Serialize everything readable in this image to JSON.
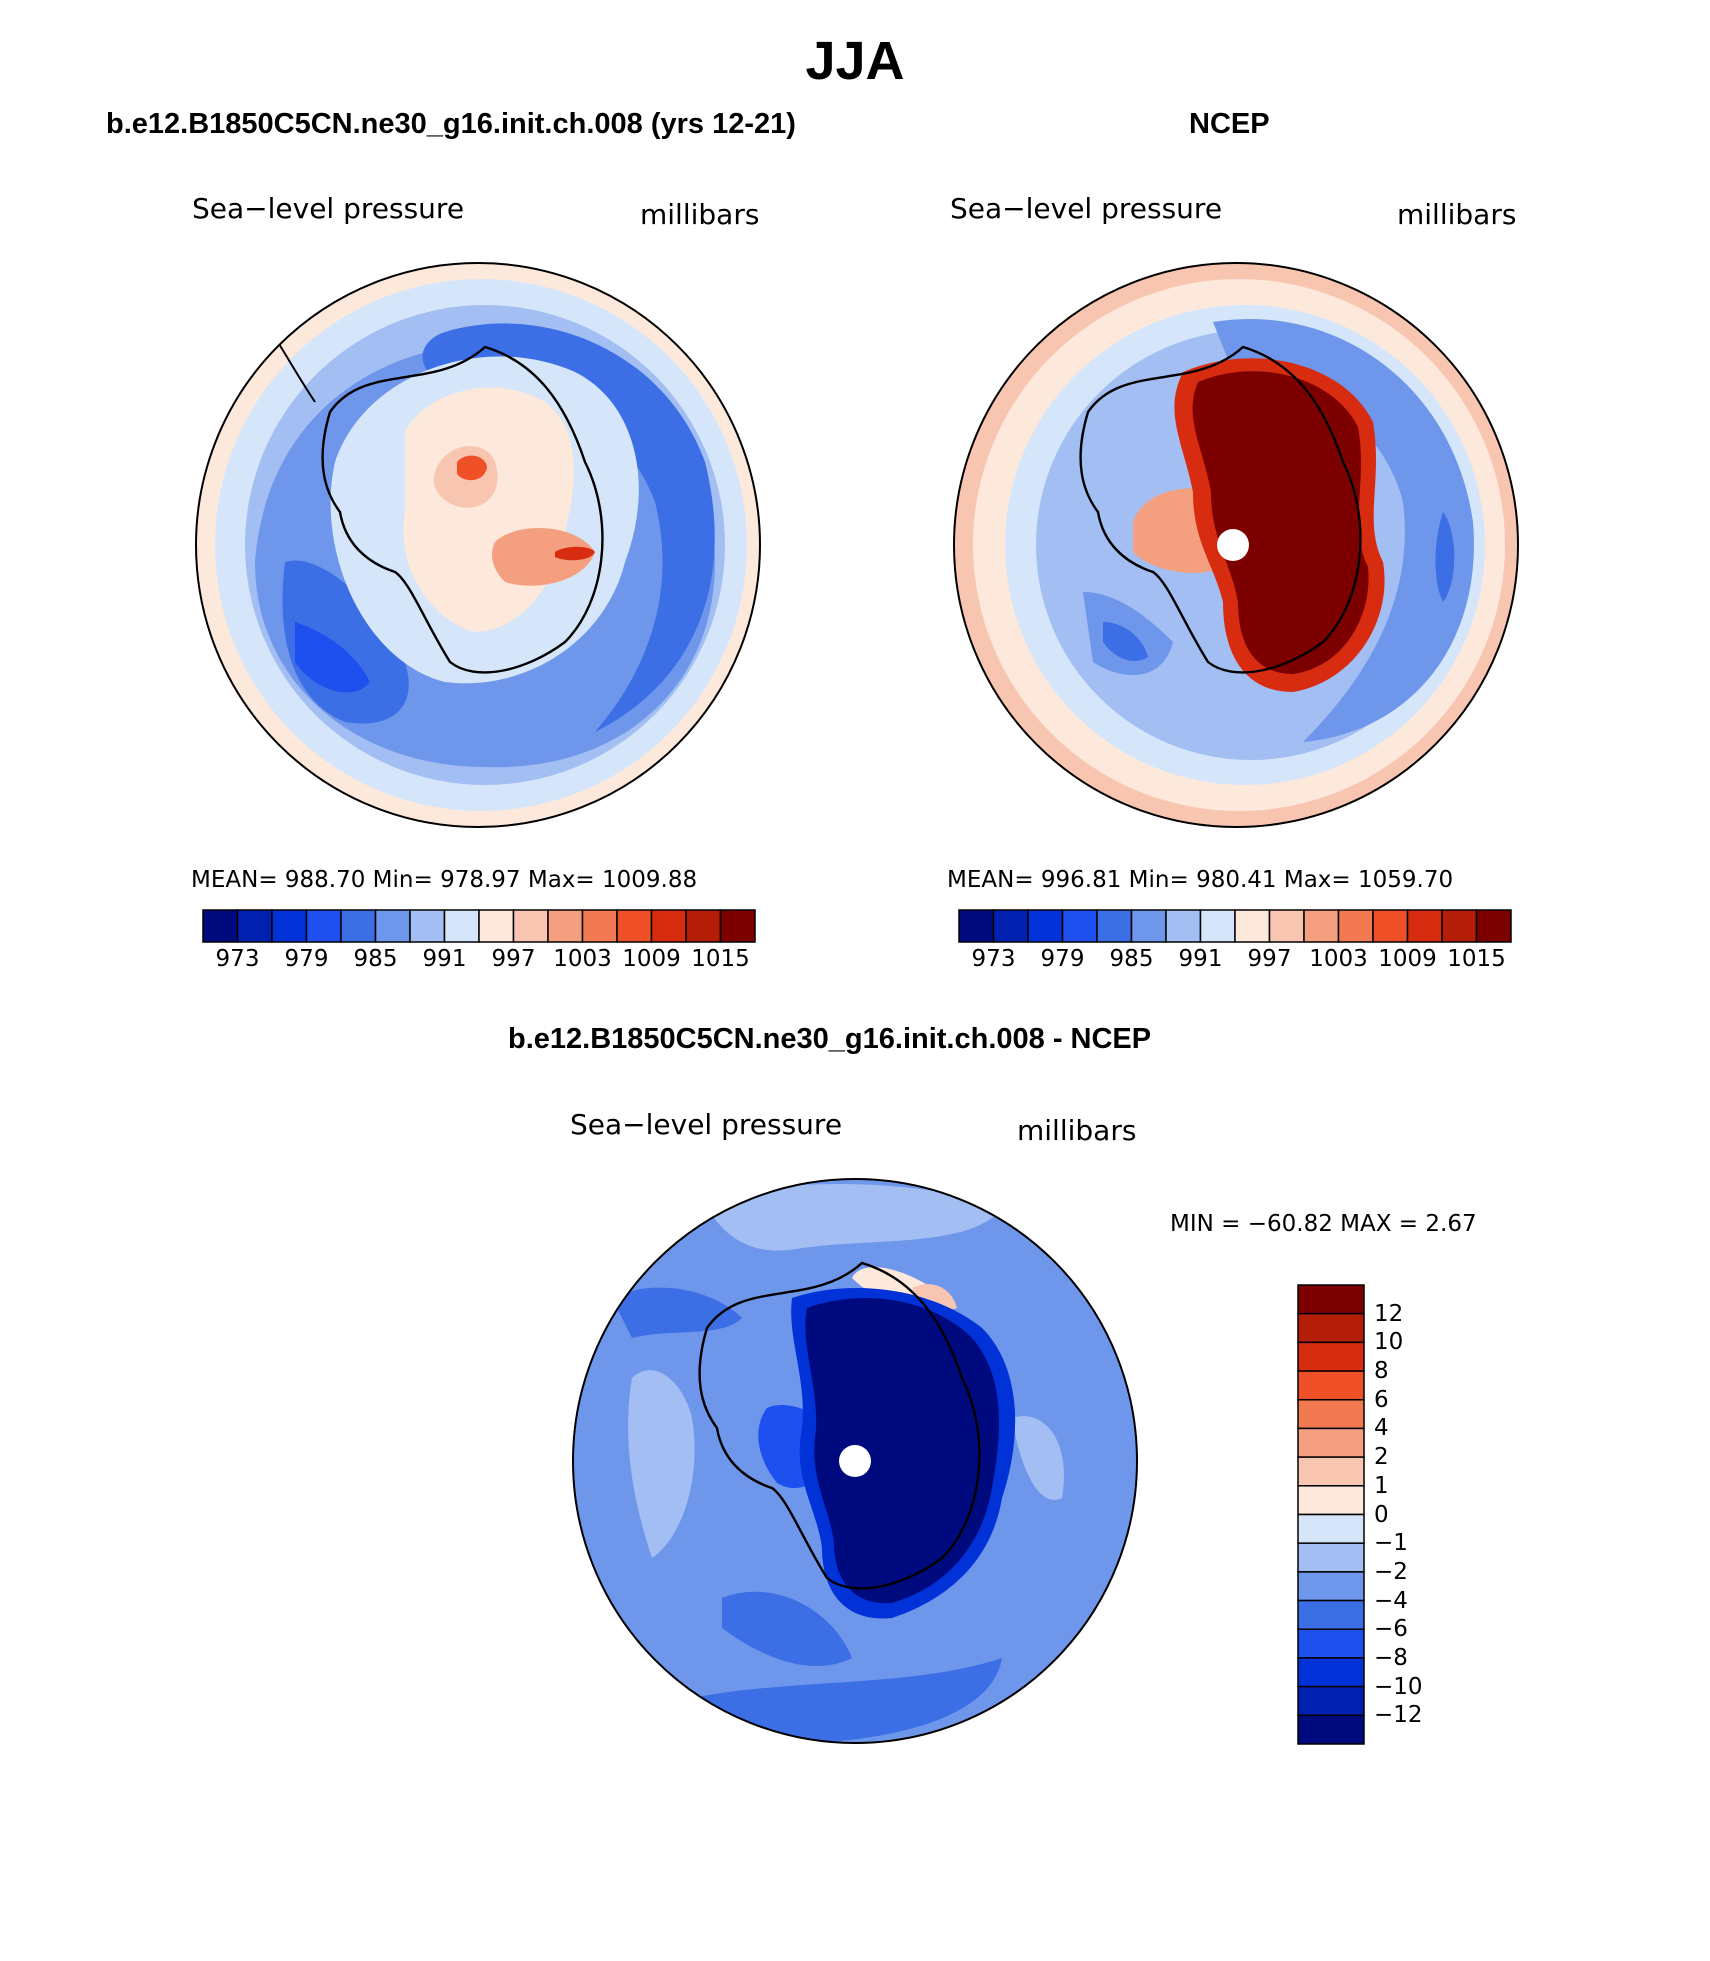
{
  "figure": {
    "title": "JJA"
  },
  "palettes": {
    "abs": [
      "#000a7f",
      "#0020b0",
      "#0032d8",
      "#1e50f0",
      "#3c6ee6",
      "#6e96ea",
      "#a2bef2",
      "#d6e6fa",
      "#fde8dc",
      "#f8c6b0",
      "#f4a080",
      "#f27a52",
      "#f05028",
      "#d82c10",
      "#b41e08",
      "#7c0000"
    ],
    "diff": [
      "#7c0000",
      "#b41e08",
      "#d82c10",
      "#f05028",
      "#f27a52",
      "#f4a080",
      "#f8c6b0",
      "#fde8dc",
      "#d6e6fa",
      "#a2bef2",
      "#6e96ea",
      "#3c6ee6",
      "#1e50f0",
      "#0032d8",
      "#0020b0",
      "#000a7f"
    ]
  },
  "panels": {
    "model": {
      "title": "b.e12.B1850C5CN.ne30_g16.init.ch.008 (yrs 12-21)",
      "left_label": "Sea−level pressure",
      "right_label": "millibars",
      "stats": "MEAN=  988.70    Min=  978.97    Max=  1009.88",
      "colorbar_ticks": [
        "973",
        "979",
        "985",
        "991",
        "997",
        "1003",
        "1009",
        "1015"
      ]
    },
    "obs": {
      "title": "NCEP",
      "left_label": "Sea−level pressure",
      "right_label": "millibars",
      "stats": "MEAN=  996.81    Min=  980.41    Max=  1059.70",
      "colorbar_ticks": [
        "973",
        "979",
        "985",
        "991",
        "997",
        "1003",
        "1009",
        "1015"
      ]
    },
    "diff": {
      "title": "b.e12.B1850C5CN.ne30_g16.init.ch.008 - NCEP",
      "left_label": "Sea−level pressure",
      "right_label": "millibars",
      "stats": "MIN  =  −60.82  MAX  =      2.67",
      "colorbar_ticks": [
        "12",
        "10",
        "8",
        "6",
        "4",
        "2",
        "1",
        "0",
        "−1",
        "−2",
        "−4",
        "−6",
        "−8",
        "−10",
        "−12"
      ]
    }
  }
}
